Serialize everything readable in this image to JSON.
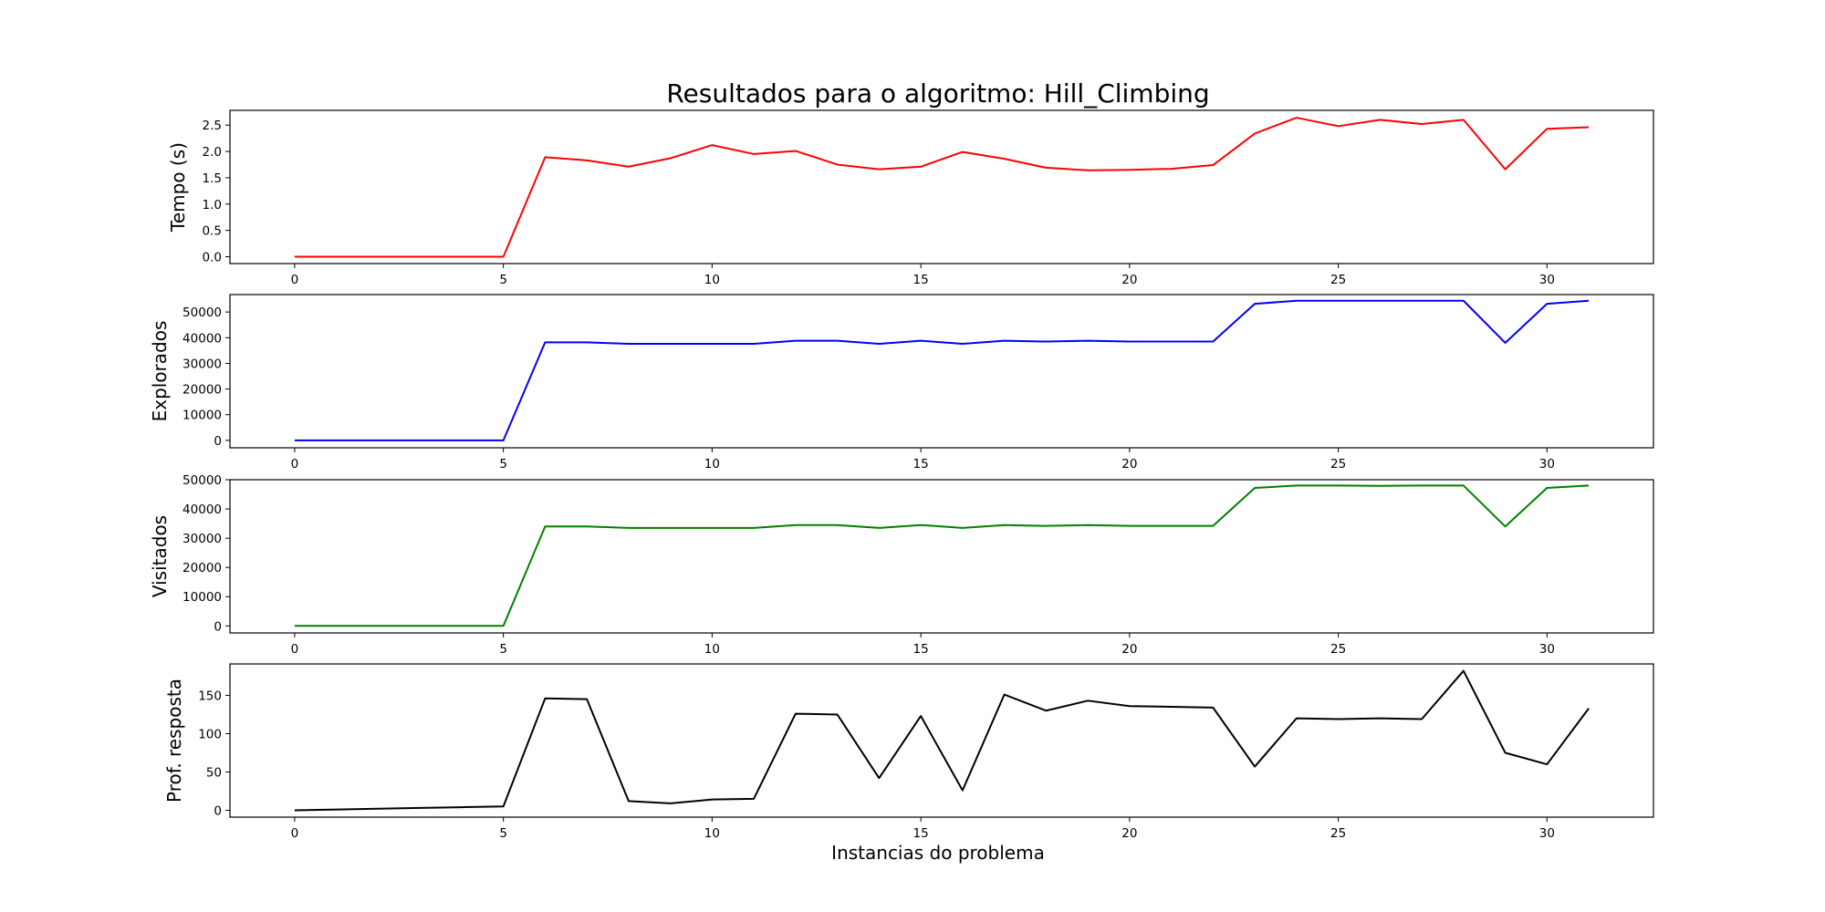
{
  "figure": {
    "title": "Resultados para o algoritmo: Hill_Climbing",
    "xlabel": "Instancias do problema"
  },
  "chart_data": [
    {
      "type": "line",
      "ylabel": "Tempo (s)",
      "color": "#ff0000",
      "x": [
        0,
        1,
        2,
        3,
        4,
        5,
        6,
        7,
        8,
        9,
        10,
        11,
        12,
        13,
        14,
        15,
        16,
        17,
        18,
        19,
        20,
        21,
        22,
        23,
        24,
        25,
        26,
        27,
        28,
        29,
        30,
        31
      ],
      "values": [
        0,
        0,
        0,
        0,
        0,
        0,
        1.89,
        1.83,
        1.71,
        1.87,
        2.12,
        1.95,
        2.01,
        1.75,
        1.66,
        1.71,
        1.99,
        1.86,
        1.69,
        1.64,
        1.65,
        1.67,
        1.74,
        2.34,
        2.64,
        2.48,
        2.6,
        2.52,
        2.6,
        1.66,
        2.43,
        2.46
      ],
      "xlim": [
        -1.55,
        32.55
      ],
      "ylim": [
        -0.13,
        2.78
      ],
      "xticks": [
        0,
        5,
        10,
        15,
        20,
        25,
        30
      ],
      "yticks": [
        0,
        0.5,
        1,
        1.5,
        2,
        2.5
      ],
      "ytick_labels": [
        "0.0",
        "0.5",
        "1.0",
        "1.5",
        "2.0",
        "2.5"
      ]
    },
    {
      "type": "line",
      "ylabel": "Explorados",
      "color": "#0000ff",
      "x": [
        0,
        1,
        2,
        3,
        4,
        5,
        6,
        7,
        8,
        9,
        10,
        11,
        12,
        13,
        14,
        15,
        16,
        17,
        18,
        19,
        20,
        21,
        22,
        23,
        24,
        25,
        26,
        27,
        28,
        29,
        30,
        31
      ],
      "values": [
        0,
        0,
        0,
        0,
        0,
        0,
        38200,
        38200,
        37600,
        37600,
        37600,
        37600,
        38800,
        38800,
        37600,
        38800,
        37600,
        38800,
        38500,
        38800,
        38500,
        38500,
        38500,
        53200,
        54400,
        54400,
        54400,
        54400,
        54400,
        38000,
        53200,
        54400
      ],
      "xlim": [
        -1.55,
        32.55
      ],
      "ylim": [
        -2900,
        56800
      ],
      "xticks": [
        0,
        5,
        10,
        15,
        20,
        25,
        30
      ],
      "yticks": [
        0,
        10000,
        20000,
        30000,
        40000,
        50000
      ],
      "ytick_labels": [
        "0",
        "10000",
        "20000",
        "30000",
        "40000",
        "50000"
      ]
    },
    {
      "type": "line",
      "ylabel": "Visitados",
      "color": "#008000",
      "x": [
        0,
        1,
        2,
        3,
        4,
        5,
        6,
        7,
        8,
        9,
        10,
        11,
        12,
        13,
        14,
        15,
        16,
        17,
        18,
        19,
        20,
        21,
        22,
        23,
        24,
        25,
        26,
        27,
        28,
        29,
        30,
        31
      ],
      "values": [
        0,
        0,
        0,
        0,
        0,
        0,
        34000,
        34000,
        33500,
        33500,
        33500,
        33500,
        34500,
        34500,
        33500,
        34500,
        33500,
        34500,
        34200,
        34500,
        34200,
        34200,
        34200,
        47200,
        48000,
        48000,
        47900,
        48000,
        48000,
        34000,
        47200,
        48000
      ],
      "xlim": [
        -1.55,
        32.55
      ],
      "ylim": [
        -2400,
        50000
      ],
      "xticks": [
        0,
        5,
        10,
        15,
        20,
        25,
        30
      ],
      "yticks": [
        0,
        10000,
        20000,
        30000,
        40000,
        50000
      ],
      "ytick_labels": [
        "0",
        "10000",
        "20000",
        "30000",
        "40000",
        "50000"
      ]
    },
    {
      "type": "line",
      "ylabel": "Prof. resposta",
      "color": "#000000",
      "x": [
        0,
        1,
        2,
        3,
        4,
        5,
        6,
        7,
        8,
        9,
        10,
        11,
        12,
        13,
        14,
        15,
        16,
        17,
        18,
        19,
        20,
        21,
        22,
        23,
        24,
        25,
        26,
        27,
        28,
        29,
        30,
        31
      ],
      "values": [
        0,
        1,
        2,
        3,
        4,
        5,
        146,
        145,
        12,
        9,
        14,
        15,
        126,
        125,
        42,
        123,
        26,
        151,
        130,
        143,
        136,
        135,
        134,
        57,
        120,
        119,
        120,
        119,
        182,
        75,
        60,
        133
      ],
      "xlim": [
        -1.55,
        32.55
      ],
      "ylim": [
        -9,
        191
      ],
      "xticks": [
        0,
        5,
        10,
        15,
        20,
        25,
        30
      ],
      "yticks": [
        0,
        50,
        100,
        150
      ],
      "ytick_labels": [
        "0",
        "50",
        "100",
        "150"
      ]
    }
  ]
}
